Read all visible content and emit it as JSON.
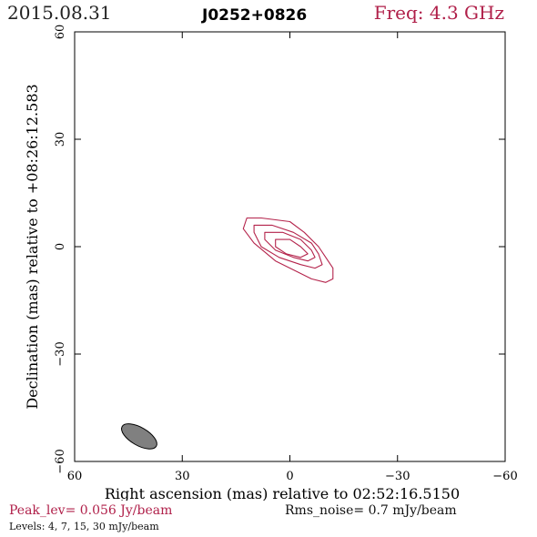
{
  "header": {
    "date": "2015.08.31",
    "source": "J0252+0826",
    "freq": "Freq: 4.3 GHz"
  },
  "chart_data": {
    "type": "contour",
    "xlabel": "Right ascension (mas) relative to 02:52:16.5150",
    "ylabel": "Declination (mas) relative to +08:26:12.583",
    "xlim": [
      60,
      -60
    ],
    "ylim": [
      -60,
      60
    ],
    "xticks": [
      60,
      30,
      0,
      -30,
      -60
    ],
    "xtick_labels": [
      "60",
      "30",
      "0",
      "−30",
      "−60"
    ],
    "yticks": [
      60,
      30,
      0,
      -30,
      -60
    ],
    "ytick_labels": [
      "60",
      "30",
      "0",
      "−30",
      "−60"
    ],
    "contour_levels_mJy": [
      4,
      7,
      15,
      30
    ],
    "contours": [
      {
        "level": 4,
        "points": [
          [
            12,
            8
          ],
          [
            8,
            8
          ],
          [
            0,
            7
          ],
          [
            -4,
            4
          ],
          [
            -8,
            0
          ],
          [
            -10,
            -3
          ],
          [
            -12,
            -6
          ],
          [
            -12,
            -9
          ],
          [
            -10,
            -10
          ],
          [
            -6,
            -9
          ],
          [
            -2,
            -7
          ],
          [
            4,
            -4
          ],
          [
            10,
            1
          ],
          [
            13,
            5
          ],
          [
            12,
            8
          ]
        ]
      },
      {
        "level": 7,
        "points": [
          [
            10,
            6
          ],
          [
            5,
            6
          ],
          [
            -1,
            4
          ],
          [
            -6,
            1
          ],
          [
            -8,
            -2
          ],
          [
            -9,
            -5
          ],
          [
            -7,
            -6
          ],
          [
            -3,
            -5
          ],
          [
            3,
            -3
          ],
          [
            8,
            0
          ],
          [
            10,
            4
          ],
          [
            10,
            6
          ]
        ]
      },
      {
        "level": 15,
        "points": [
          [
            7,
            4
          ],
          [
            2,
            4
          ],
          [
            -3,
            2
          ],
          [
            -6,
            -1
          ],
          [
            -7,
            -3
          ],
          [
            -5,
            -4
          ],
          [
            -1,
            -3
          ],
          [
            4,
            -1
          ],
          [
            7,
            2
          ],
          [
            7,
            4
          ]
        ]
      },
      {
        "level": 30,
        "points": [
          [
            4,
            2
          ],
          [
            0,
            2
          ],
          [
            -3,
            0
          ],
          [
            -5,
            -2
          ],
          [
            -3,
            -3
          ],
          [
            1,
            -2
          ],
          [
            4,
            0
          ],
          [
            4,
            2
          ]
        ]
      }
    ],
    "contour_color": "#b4234b",
    "beam": {
      "ra": 42,
      "dec": -53,
      "major_mas": 11,
      "minor_mas": 5,
      "pa_deg": 30,
      "color": "#808080"
    }
  },
  "footer": {
    "peak": "Peak_lev=  0.056 Jy/beam",
    "rms": "Rms_noise=  0.7 mJy/beam",
    "levels": "Levels:  4,  7,  15,  30 mJy/beam"
  }
}
